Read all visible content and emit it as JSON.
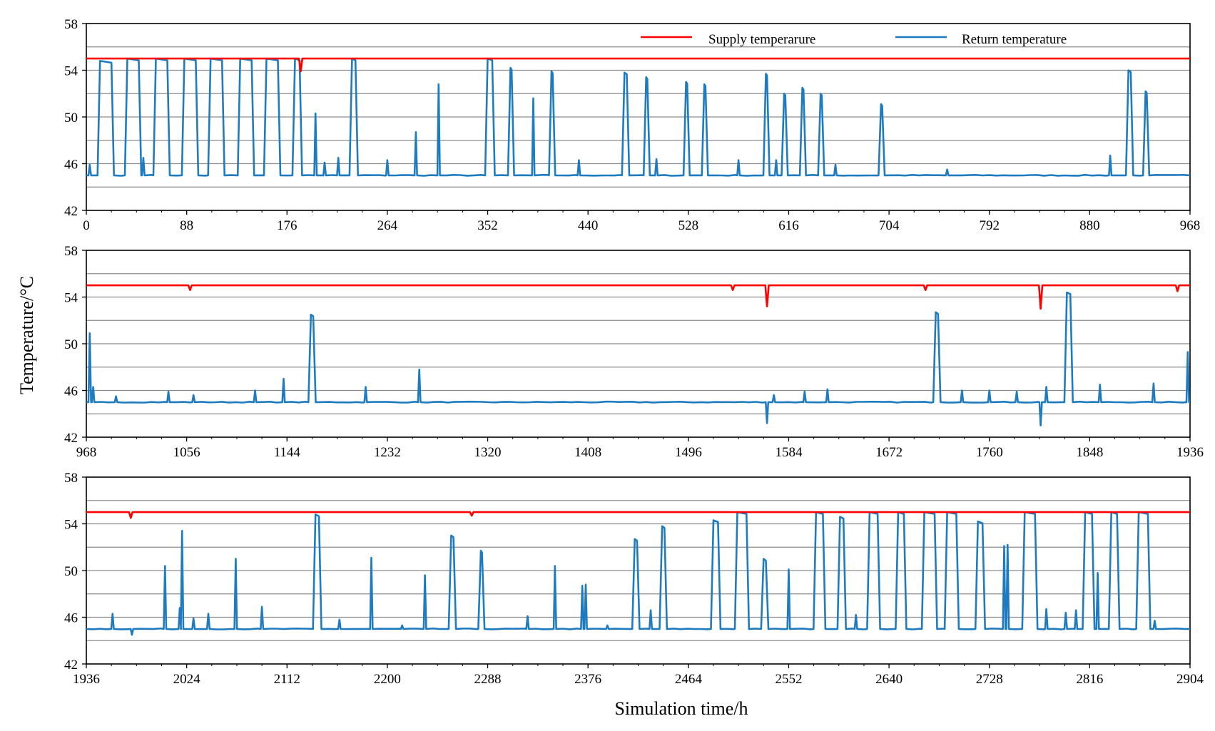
{
  "figure": {
    "ylabel": "Temperature/°C",
    "xlabel": "Simulation time/h"
  },
  "legend": {
    "supply_label": "Supply temperarure",
    "return_label": "Return temperature",
    "supply_color": "#ff0000",
    "return_color": "#1f7bc0"
  },
  "chart_data": [
    {
      "type": "line",
      "panel": 1,
      "xlim": [
        0,
        968
      ],
      "ylim": [
        42,
        58
      ],
      "xticks": [
        0,
        88,
        176,
        264,
        352,
        440,
        528,
        616,
        704,
        792,
        880,
        968
      ],
      "yticks": [
        42,
        46,
        50,
        54,
        58
      ],
      "grid": true,
      "series": [
        {
          "name": "Supply temperarure",
          "baseline": 55,
          "dips": [
            [
              188,
              53.9
            ]
          ],
          "points": [
            [
              0,
              55
            ],
            [
              186,
              55
            ],
            [
              188,
              53.9
            ],
            [
              190,
              55
            ],
            [
              968,
              55
            ]
          ]
        },
        {
          "name": "Return temperature",
          "baseline": 45,
          "pulses": [
            [
              12,
              22,
              54.8
            ],
            [
              36,
              46,
              55
            ],
            [
              61,
              71,
              55
            ],
            [
              86,
              96,
              55
            ],
            [
              109,
              119,
              55
            ],
            [
              135,
              145,
              55
            ],
            [
              158,
              168,
              55
            ],
            [
              183,
              187,
              55
            ],
            [
              233,
              236,
              55
            ],
            [
              352,
              356,
              55
            ],
            [
              372,
              373,
              54.2
            ],
            [
              408,
              409,
              53.9
            ],
            [
              472,
              474,
              53.8
            ],
            [
              491,
              492,
              53.4
            ],
            [
              526,
              527,
              53
            ],
            [
              542,
              543,
              52.8
            ],
            [
              596,
              597,
              53.7
            ],
            [
              612,
              613,
              52
            ],
            [
              628,
              629,
              52.5
            ],
            [
              644,
              645,
              52
            ],
            [
              697,
              698,
              51.1
            ],
            [
              914,
              916,
              54
            ],
            [
              929,
              930,
              52.2
            ]
          ],
          "spikes": [
            [
              3,
              45.9
            ],
            [
              50,
              46.5
            ],
            [
              201,
              50.3
            ],
            [
              209,
              46.1
            ],
            [
              221,
              46.5
            ],
            [
              264,
              46.3
            ],
            [
              289,
              48.7
            ],
            [
              309,
              52.8
            ],
            [
              392,
              51.6
            ],
            [
              432,
              46.3
            ],
            [
              500,
              46.4
            ],
            [
              572,
              46.3
            ],
            [
              605,
              46.3
            ],
            [
              657,
              45.9
            ],
            [
              755,
              45.5
            ],
            [
              898,
              46.7
            ]
          ]
        }
      ]
    },
    {
      "type": "line",
      "panel": 2,
      "xlim": [
        968,
        1936
      ],
      "ylim": [
        42,
        58
      ],
      "xticks": [
        968,
        1056,
        1144,
        1232,
        1320,
        1408,
        1496,
        1584,
        1672,
        1760,
        1848,
        1936
      ],
      "yticks": [
        42,
        46,
        50,
        54,
        58
      ],
      "grid": true,
      "series": [
        {
          "name": "Supply temperarure",
          "baseline": 55,
          "dips": [
            [
              1059,
              54.6
            ],
            [
              1535,
              54.6
            ],
            [
              1565,
              53.2
            ],
            [
              1704,
              54.6
            ],
            [
              1805,
              53
            ],
            [
              1925,
              54.5
            ]
          ],
          "points": [
            [
              968,
              55
            ],
            [
              1936,
              55
            ]
          ]
        },
        {
          "name": "Return temperature",
          "baseline": 45,
          "pulses": [
            [
              1165,
              1167,
              52.5
            ],
            [
              1713,
              1715,
              52.7
            ],
            [
              1828,
              1831,
              54.4
            ]
          ],
          "spikes": [
            [
              971,
              50.9
            ],
            [
              974,
              46.3
            ],
            [
              994,
              45.5
            ],
            [
              1040,
              45.9
            ],
            [
              1062,
              45.6
            ],
            [
              1116,
              46
            ],
            [
              1141,
              47
            ],
            [
              1213,
              46.3
            ],
            [
              1260,
              47.8
            ],
            [
              1571,
              45.6
            ],
            [
              1598,
              45.9
            ],
            [
              1618,
              46.1
            ],
            [
              1736,
              46
            ],
            [
              1760,
              46
            ],
            [
              1784,
              45.9
            ],
            [
              1810,
              46.3
            ],
            [
              1857,
              46.5
            ],
            [
              1904,
              46.6
            ],
            [
              1934,
              49.3
            ]
          ],
          "dips": [
            [
              1565,
              43.2
            ],
            [
              1805,
              43
            ]
          ]
        }
      ]
    },
    {
      "type": "line",
      "panel": 3,
      "xlim": [
        1936,
        2904
      ],
      "ylim": [
        42,
        58
      ],
      "xticks": [
        1936,
        2024,
        2112,
        2200,
        2288,
        2376,
        2464,
        2552,
        2640,
        2728,
        2816,
        2904
      ],
      "yticks": [
        42,
        46,
        50,
        54,
        58
      ],
      "grid": true,
      "series": [
        {
          "name": "Supply temperarure",
          "baseline": 55,
          "dips": [
            [
              1975,
              54.5
            ],
            [
              2274,
              54.7
            ]
          ],
          "points": [
            [
              1936,
              55
            ],
            [
              2904,
              55
            ]
          ]
        },
        {
          "name": "Return temperature",
          "baseline": 45,
          "pulses": [
            [
              2137,
              2140,
              54.8
            ],
            [
              2256,
              2258,
              53
            ],
            [
              2282,
              2283,
              51.7
            ],
            [
              2417,
              2419,
              52.7
            ],
            [
              2441,
              2443,
              53.8
            ],
            [
              2486,
              2490,
              54.3
            ],
            [
              2507,
              2515,
              55
            ],
            [
              2530,
              2532,
              51
            ],
            [
              2576,
              2582,
              55
            ],
            [
              2597,
              2600,
              54.6
            ],
            [
              2623,
              2630,
              55
            ],
            [
              2648,
              2653,
              55
            ],
            [
              2671,
              2680,
              55
            ],
            [
              2691,
              2699,
              55
            ],
            [
              2718,
              2722,
              54.2
            ],
            [
              2759,
              2768,
              55
            ],
            [
              2812,
              2818,
              55
            ],
            [
              2835,
              2840,
              55
            ],
            [
              2859,
              2867,
              55
            ]
          ],
          "spikes": [
            [
              1959,
              46.3
            ],
            [
              2005,
              50.4
            ],
            [
              2018,
              46.8
            ],
            [
              2020,
              53.4
            ],
            [
              2030,
              45.9
            ],
            [
              2043,
              46.3
            ],
            [
              2067,
              51
            ],
            [
              2090,
              46.9
            ],
            [
              2158,
              45.8
            ],
            [
              2186,
              51.1
            ],
            [
              2213,
              45.3
            ],
            [
              2233,
              49.6
            ],
            [
              2323,
              46.1
            ],
            [
              2347,
              50.4
            ],
            [
              2371,
              48.7
            ],
            [
              2374,
              48.8
            ],
            [
              2393,
              45.3
            ],
            [
              2431,
              46.6
            ],
            [
              2552,
              50.1
            ],
            [
              2611,
              46.2
            ],
            [
              2741,
              52.1
            ],
            [
              2744,
              52.2
            ],
            [
              2778,
              46.7
            ],
            [
              2795,
              46.4
            ],
            [
              2804,
              46.6
            ],
            [
              2823,
              49.8
            ],
            [
              2873,
              45.7
            ]
          ],
          "dips": [
            [
              1976,
              44.5
            ]
          ]
        }
      ]
    }
  ]
}
